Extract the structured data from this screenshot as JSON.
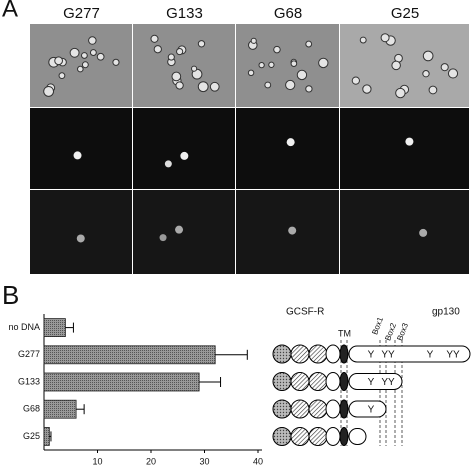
{
  "panel_a": {
    "label": "A",
    "columns": [
      "G277",
      "G133",
      "G68",
      "G25"
    ]
  },
  "panel_b": {
    "label": "B"
  },
  "chart_data": {
    "type": "bar",
    "orientation": "horizontal",
    "categories": [
      "no DNA",
      "G277",
      "G133",
      "G68",
      "G25"
    ],
    "values": [
      4,
      32,
      29,
      6,
      1
    ],
    "errors": [
      1.5,
      6,
      4,
      1.5,
      0.3
    ],
    "color": "#8a8a8a",
    "xlim": [
      0,
      40
    ],
    "xticks": [
      10,
      20,
      30,
      40
    ]
  },
  "diagram": {
    "left_label": "GCSF-R",
    "right_label": "gp130",
    "tm": "TM",
    "boxes": [
      "Box1",
      "Box2",
      "Box3"
    ],
    "rows": [
      [
        "Y",
        "YY",
        "Y",
        "YY"
      ],
      [
        "Y",
        "YY"
      ],
      [
        "Y"
      ],
      []
    ]
  }
}
